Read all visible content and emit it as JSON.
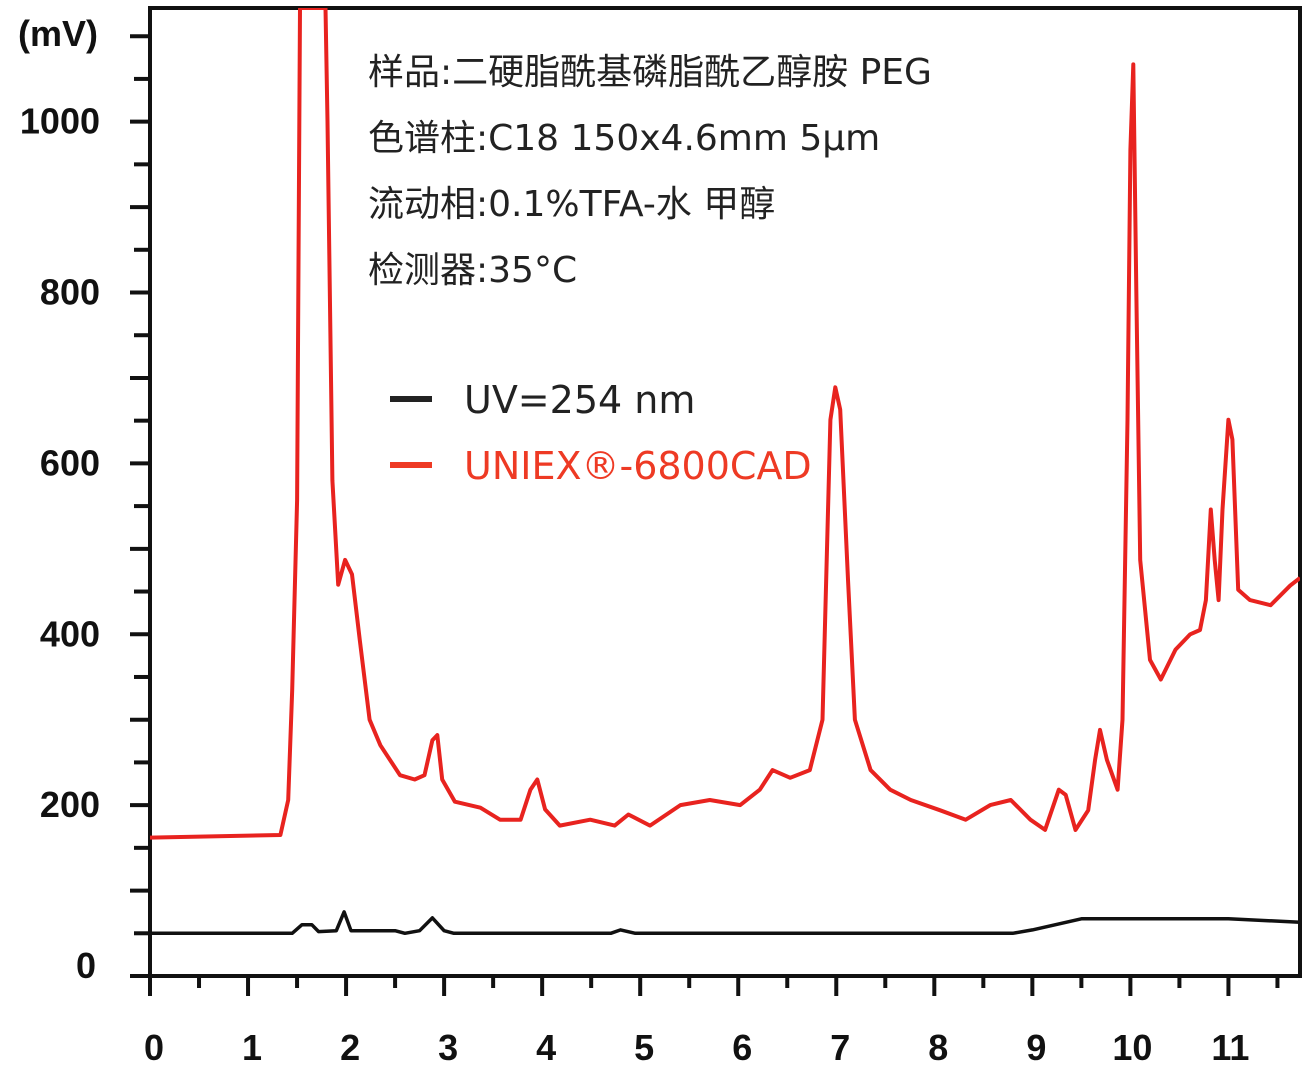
{
  "chart_data": {
    "type": "line",
    "title": "",
    "xlabel": "",
    "ylabel": "(mV)",
    "xlim": [
      0,
      11.73
    ],
    "ylim": [
      0,
      1133
    ],
    "x_ticks": [
      0,
      1,
      2,
      3,
      4,
      5,
      6,
      7,
      8,
      9,
      10,
      11
    ],
    "y_ticks": [
      0,
      200,
      400,
      600,
      800,
      1000
    ],
    "grid": false,
    "legend_placement": "top-center",
    "annotations": [
      "样品:二硬脂酰基磷脂酰乙醇胺 PEG",
      "色谱柱:C18 150x4.6mm 5µm",
      "流动相:0.1%TFA-水 甲醇",
      "检测器:35°C"
    ],
    "series": [
      {
        "name": "UV=254 nm",
        "color": "#111111",
        "points": [
          [
            0,
            50
          ],
          [
            1.45,
            50
          ],
          [
            1.55,
            60
          ],
          [
            1.65,
            60
          ],
          [
            1.72,
            52
          ],
          [
            1.9,
            53
          ],
          [
            1.98,
            75
          ],
          [
            2.05,
            53
          ],
          [
            2.5,
            53
          ],
          [
            2.6,
            50
          ],
          [
            2.75,
            53
          ],
          [
            2.88,
            68
          ],
          [
            3.0,
            53
          ],
          [
            3.1,
            50
          ],
          [
            4.7,
            50
          ],
          [
            4.8,
            54
          ],
          [
            4.95,
            50
          ],
          [
            8.8,
            50
          ],
          [
            9.0,
            54
          ],
          [
            9.5,
            67
          ],
          [
            11.0,
            67
          ],
          [
            11.73,
            63
          ]
        ]
      },
      {
        "name": "UNIEX®-6800CAD",
        "color": "#e8231f",
        "points": [
          [
            0,
            162
          ],
          [
            1.33,
            165
          ],
          [
            1.41,
            206
          ],
          [
            1.45,
            335
          ],
          [
            1.5,
            557
          ],
          [
            1.53,
            1133
          ],
          [
            1.79,
            1133
          ],
          [
            1.81,
            1000
          ],
          [
            1.86,
            580
          ],
          [
            1.92,
            458
          ],
          [
            1.99,
            487
          ],
          [
            2.06,
            470
          ],
          [
            2.14,
            393
          ],
          [
            2.24,
            300
          ],
          [
            2.35,
            270
          ],
          [
            2.55,
            235
          ],
          [
            2.7,
            230
          ],
          [
            2.8,
            235
          ],
          [
            2.88,
            276
          ],
          [
            2.93,
            282
          ],
          [
            2.98,
            230
          ],
          [
            3.11,
            204
          ],
          [
            3.37,
            197
          ],
          [
            3.57,
            183
          ],
          [
            3.78,
            183
          ],
          [
            3.88,
            218
          ],
          [
            3.95,
            230
          ],
          [
            4.03,
            195
          ],
          [
            4.18,
            176
          ],
          [
            4.49,
            183
          ],
          [
            4.74,
            176
          ],
          [
            4.88,
            189
          ],
          [
            5.1,
            176
          ],
          [
            5.41,
            200
          ],
          [
            5.71,
            206
          ],
          [
            6.02,
            200
          ],
          [
            6.22,
            218
          ],
          [
            6.35,
            241
          ],
          [
            6.53,
            232
          ],
          [
            6.73,
            241
          ],
          [
            6.86,
            300
          ],
          [
            6.94,
            651
          ],
          [
            6.99,
            689
          ],
          [
            7.04,
            663
          ],
          [
            7.12,
            464
          ],
          [
            7.19,
            300
          ],
          [
            7.35,
            241
          ],
          [
            7.55,
            218
          ],
          [
            7.76,
            206
          ],
          [
            8.06,
            194
          ],
          [
            8.32,
            183
          ],
          [
            8.57,
            200
          ],
          [
            8.78,
            206
          ],
          [
            8.98,
            183
          ],
          [
            9.13,
            171
          ],
          [
            9.27,
            218
          ],
          [
            9.34,
            212
          ],
          [
            9.44,
            171
          ],
          [
            9.57,
            194
          ],
          [
            9.64,
            253
          ],
          [
            9.69,
            288
          ],
          [
            9.76,
            253
          ],
          [
            9.87,
            218
          ],
          [
            9.92,
            300
          ],
          [
            9.97,
            651
          ],
          [
            10.0,
            967
          ],
          [
            10.03,
            1067
          ],
          [
            10.06,
            803
          ],
          [
            10.1,
            487
          ],
          [
            10.2,
            370
          ],
          [
            10.31,
            347
          ],
          [
            10.46,
            382
          ],
          [
            10.61,
            400
          ],
          [
            10.71,
            405
          ],
          [
            10.77,
            440
          ],
          [
            10.82,
            546
          ],
          [
            10.86,
            487
          ],
          [
            10.9,
            440
          ],
          [
            10.94,
            546
          ],
          [
            11.0,
            651
          ],
          [
            11.04,
            628
          ],
          [
            11.1,
            452
          ],
          [
            11.22,
            440
          ],
          [
            11.43,
            434
          ],
          [
            11.63,
            457
          ],
          [
            11.73,
            466
          ]
        ]
      }
    ]
  }
}
